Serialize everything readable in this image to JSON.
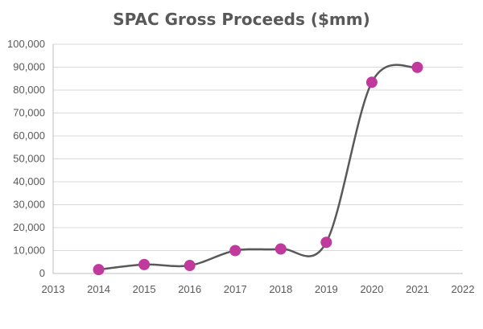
{
  "chart_data": {
    "type": "scatter",
    "title": "SPAC Gross Proceeds ($mm)",
    "xlabel": "",
    "ylabel": "",
    "x": [
      2014,
      2015,
      2016,
      2017,
      2018,
      2019,
      2020,
      2021
    ],
    "values": [
      1700,
      3900,
      3500,
      10000,
      10700,
      13600,
      83400,
      89900
    ],
    "xlim": [
      2013,
      2022
    ],
    "ylim": [
      0,
      100000
    ],
    "x_ticks": [
      "2013",
      "2014",
      "2015",
      "2016",
      "2017",
      "2018",
      "2019",
      "2020",
      "2021",
      "2022"
    ],
    "y_ticks": [
      "0",
      "10,000",
      "20,000",
      "30,000",
      "40,000",
      "50,000",
      "60,000",
      "70,000",
      "80,000",
      "90,000",
      "100,000"
    ],
    "grid": true,
    "smooth_line": true,
    "colors": {
      "marker": "#c0399c",
      "line": "#595959",
      "grid": "#d9d9d9",
      "axis": "#bfbfbf"
    }
  }
}
